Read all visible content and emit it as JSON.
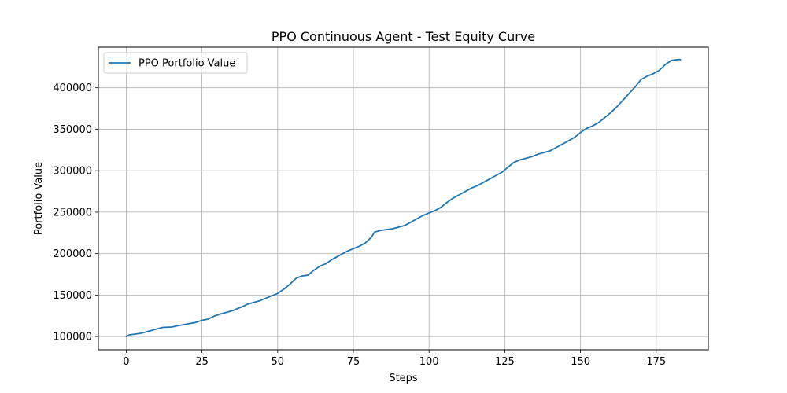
{
  "chart_data": {
    "type": "line",
    "title": "PPO Continuous Agent - Test Equity Curve",
    "xlabel": "Steps",
    "ylabel": "Portfolio Value",
    "xlim": [
      -9.2,
      192.2
    ],
    "ylim": [
      84000,
      449000
    ],
    "xticks": [
      0,
      25,
      50,
      75,
      100,
      125,
      150,
      175
    ],
    "xtick_labels": [
      "0",
      "25",
      "50",
      "75",
      "100",
      "125",
      "150",
      "175"
    ],
    "yticks": [
      100000,
      150000,
      200000,
      250000,
      300000,
      350000,
      400000
    ],
    "ytick_labels": [
      "100000",
      "150000",
      "200000",
      "250000",
      "300000",
      "350000",
      "400000"
    ],
    "grid": true,
    "legend_location": "upper left",
    "series": [
      {
        "name": "PPO Portfolio Value",
        "color": "#1f77b4",
        "x": [
          0,
          1,
          3,
          5,
          8,
          10,
          12,
          15,
          17,
          20,
          23,
          25,
          27,
          29,
          31,
          33,
          35,
          37,
          39,
          40,
          42,
          44,
          46,
          48,
          50,
          52,
          54,
          56,
          58,
          60,
          62,
          64,
          66,
          68,
          70,
          72,
          73,
          75,
          77,
          79,
          81,
          82,
          84,
          86,
          88,
          90,
          92,
          94,
          96,
          98,
          100,
          102,
          104,
          106,
          108,
          110,
          112,
          114,
          116,
          118,
          120,
          122,
          124,
          126,
          128,
          130,
          132,
          134,
          136,
          138,
          140,
          142,
          144,
          146,
          148,
          150,
          152,
          154,
          156,
          158,
          160,
          162,
          164,
          166,
          168,
          170,
          172,
          174,
          176,
          178,
          180,
          182,
          183
        ],
        "y": [
          100000,
          102000,
          103000,
          104000,
          107000,
          109000,
          111000,
          111500,
          113000,
          115000,
          117000,
          119500,
          121000,
          124500,
          127000,
          129000,
          131000,
          134000,
          137000,
          139000,
          141000,
          143000,
          146000,
          149000,
          152000,
          157000,
          163000,
          170000,
          173000,
          174000,
          180000,
          185000,
          188000,
          193000,
          197000,
          201000,
          203000,
          206000,
          209000,
          213000,
          220000,
          226000,
          228000,
          229000,
          230000,
          232000,
          234000,
          238000,
          242000,
          246000,
          249000,
          252000,
          256000,
          262000,
          267000,
          271000,
          275000,
          279000,
          282000,
          286000,
          290000,
          294000,
          298000,
          304000,
          310000,
          313000,
          315000,
          317000,
          320000,
          322000,
          324000,
          328000,
          332000,
          336000,
          340000,
          346000,
          351000,
          354000,
          358000,
          364000,
          370000,
          377000,
          385000,
          393000,
          401000,
          410000,
          414000,
          417000,
          421000,
          428000,
          433000,
          434000,
          434000
        ]
      }
    ]
  }
}
